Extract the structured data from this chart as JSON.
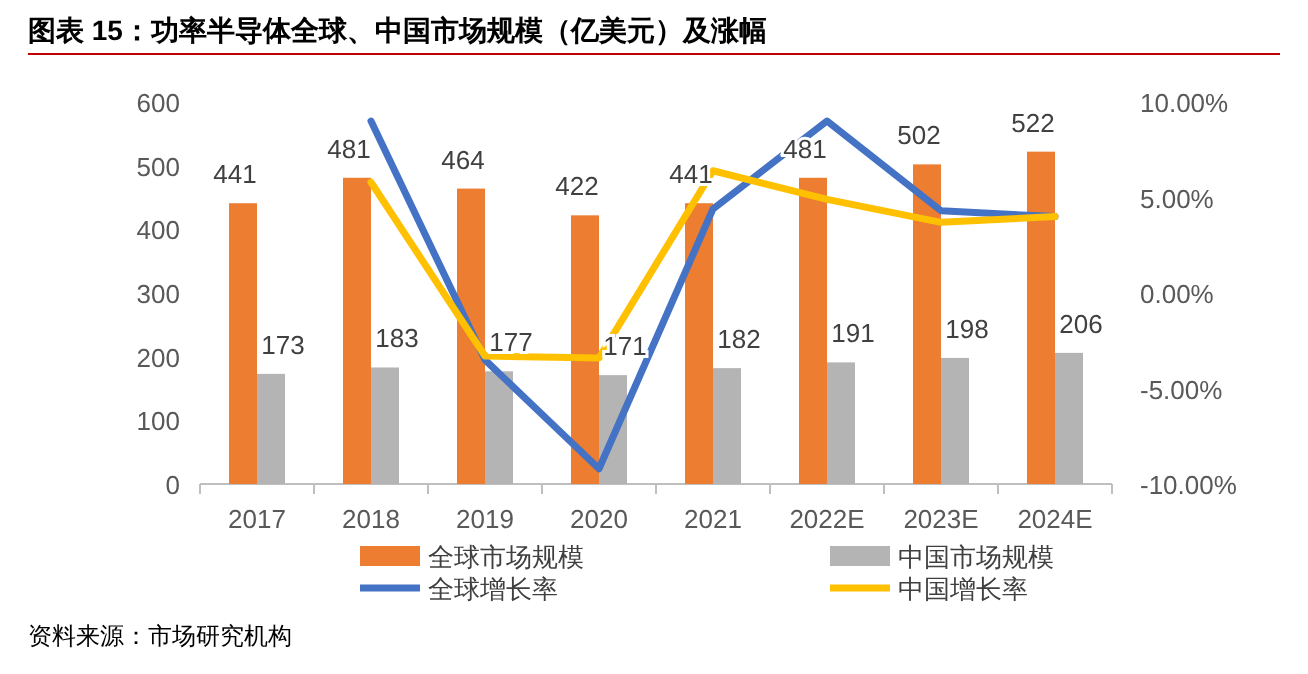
{
  "chart_data": {
    "type": "bar",
    "title": "图表 15：功率半导体全球、中国市场规模（亿美元）及涨幅",
    "categories": [
      "2017",
      "2018",
      "2019",
      "2020",
      "2021",
      "2022E",
      "2023E",
      "2024E"
    ],
    "series": [
      {
        "name": "全球市场规模",
        "type": "bar",
        "color": "#ed7d31",
        "values": [
          441,
          481,
          464,
          422,
          441,
          481,
          502,
          522
        ],
        "value_labels": [
          "441",
          "481",
          "464",
          "422",
          "441",
          "481",
          "502",
          "522"
        ]
      },
      {
        "name": "中国市场规模",
        "type": "bar",
        "color": "#b4b4b4",
        "values": [
          173,
          183,
          177,
          171,
          182,
          191,
          198,
          206
        ],
        "value_labels": [
          "173",
          "183",
          "177",
          "171",
          "182",
          "191",
          "198",
          "206"
        ]
      },
      {
        "name": "全球增长率",
        "type": "line",
        "axis": "y2",
        "color": "#4472c4",
        "values": [
          null,
          9.0,
          -3.5,
          -9.2,
          4.4,
          9.0,
          4.3,
          4.0
        ]
      },
      {
        "name": "中国增长率",
        "type": "line",
        "axis": "y2",
        "color": "#ffc000",
        "values": [
          null,
          5.8,
          -3.3,
          -3.4,
          6.4,
          4.9,
          3.7,
          4.0
        ]
      }
    ],
    "ylim": [
      0,
      600
    ],
    "yticks": [
      0,
      100,
      200,
      300,
      400,
      500,
      600
    ],
    "y2lim": [
      -10,
      10
    ],
    "y2ticks": [
      {
        "value": -10,
        "label": "-10.00%"
      },
      {
        "value": -5,
        "label": "-5.00%"
      },
      {
        "value": 0,
        "label": "0.00%"
      },
      {
        "value": 5,
        "label": "5.00%"
      },
      {
        "value": 10,
        "label": "10.00%"
      }
    ],
    "legend": "bottom",
    "grid": false,
    "marker": "none",
    "line_style": "solid",
    "annotations": [
      "资料来源：市场研究机构"
    ]
  }
}
